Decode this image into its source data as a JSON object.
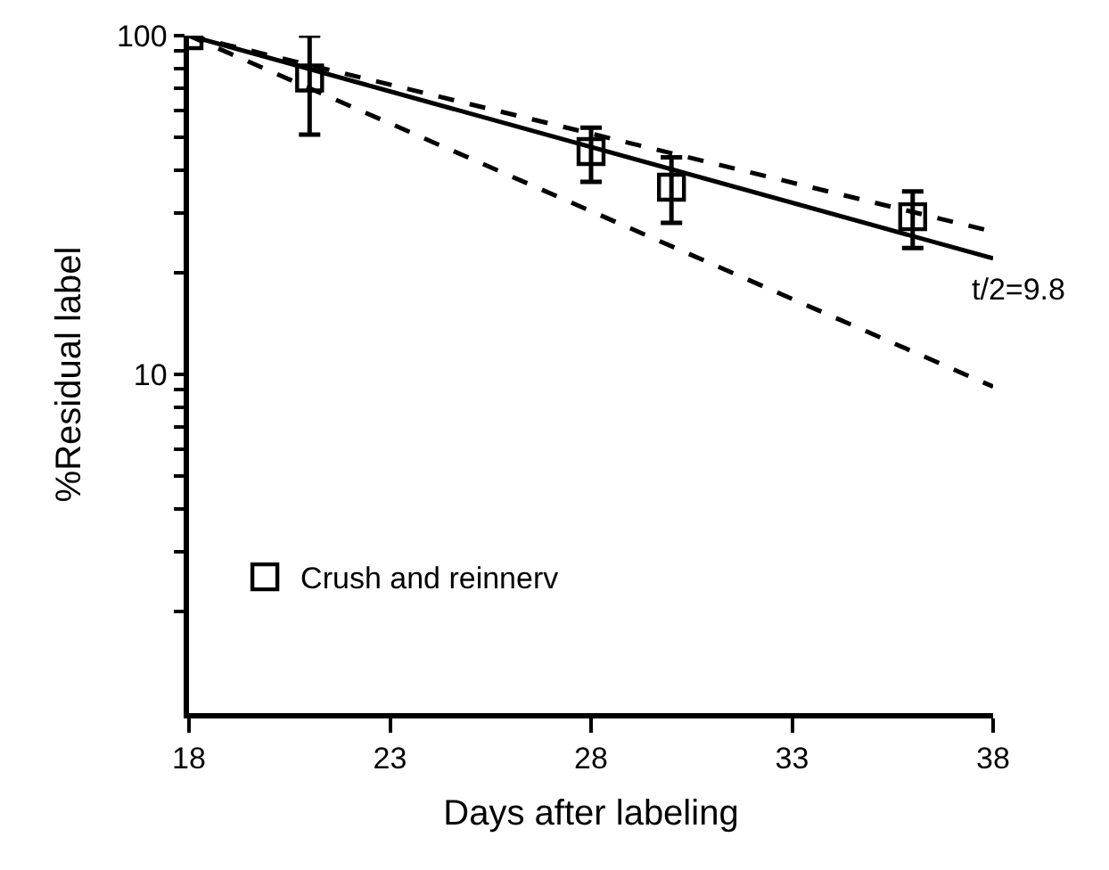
{
  "chart_data": {
    "type": "line",
    "xlabel": "Days after labeling",
    "ylabel": "%Residual label",
    "log": true,
    "xlim": [
      18,
      38
    ],
    "xticks": [
      18,
      23,
      28,
      33,
      38
    ],
    "ylim": [
      1,
      100
    ],
    "yticks": [
      {
        "value": 2,
        "label": null
      },
      {
        "value": 3,
        "label": null
      },
      {
        "value": 4,
        "label": null
      },
      {
        "value": 5,
        "label": null
      },
      {
        "value": 6,
        "label": null
      },
      {
        "value": 7,
        "label": null
      },
      {
        "value": 8,
        "label": null
      },
      {
        "value": 9,
        "label": null
      },
      10,
      {
        "value": 20,
        "label": null
      },
      {
        "value": 30,
        "label": null
      },
      {
        "value": 40,
        "label": null
      },
      {
        "value": 50,
        "label": null
      },
      {
        "value": 60,
        "label": null
      },
      {
        "value": 70,
        "label": null
      },
      {
        "value": 80,
        "label": null
      },
      {
        "value": 90,
        "label": null
      },
      100
    ],
    "legend": "bottom left",
    "series": [
      {
        "name": "Crush and reinnerv",
        "type": "scatter",
        "marker": "square",
        "color": "#000000",
        "x": [
          18,
          21,
          28,
          30,
          36
        ],
        "values": [
          100,
          75,
          45.5,
          35.7,
          29.2
        ],
        "errors": [
          null,
          [
            51,
            100
          ],
          [
            37,
            53.5
          ],
          [
            28,
            43.7
          ],
          [
            23.6,
            34.7
          ]
        ]
      },
      {
        "line_style": "solid",
        "color": "#000000",
        "x": [
          18,
          38
        ],
        "values": [
          100,
          22
        ]
      },
      {
        "line_style": "dashed",
        "color": "#000000",
        "x": [
          18,
          38
        ],
        "values": [
          100,
          26.4
        ]
      },
      {
        "line_style": "dashed",
        "color": "#000000",
        "x": [
          18,
          38
        ],
        "values": [
          100,
          9.2
        ]
      }
    ],
    "annotations": [
      "t/2=9.8"
    ]
  }
}
